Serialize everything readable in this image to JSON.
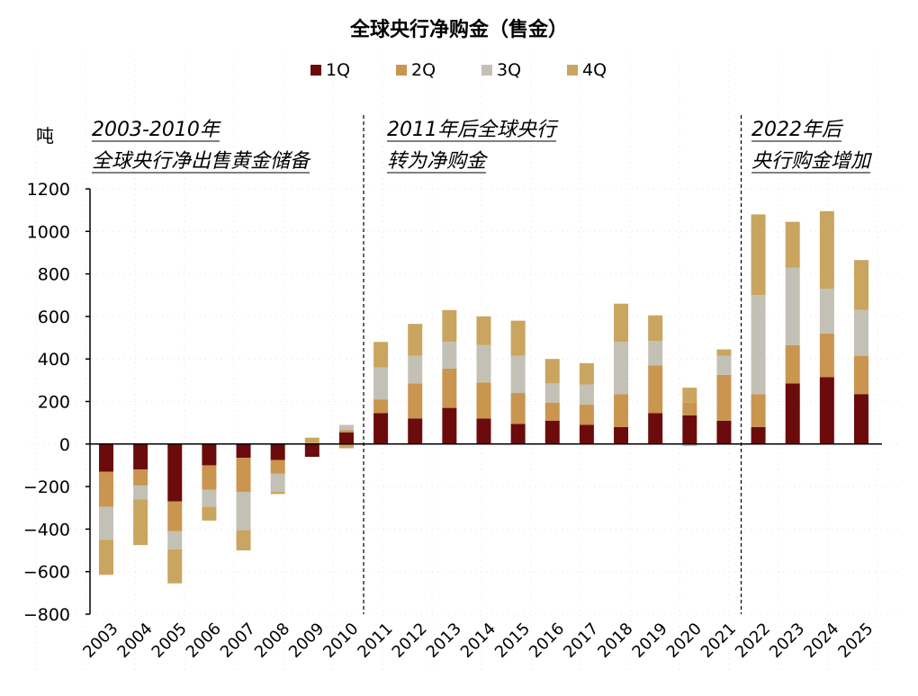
{
  "chart_data": {
    "type": "bar",
    "stacked": true,
    "title": "全球央行净购金（售金）",
    "ylabel": "吨",
    "ylim": [
      -800,
      1200
    ],
    "yticks": [
      -800,
      -600,
      -400,
      -200,
      0,
      200,
      400,
      600,
      800,
      1000,
      1200
    ],
    "legend_position": "top-center",
    "colors": {
      "1Q": "#6b0b0b",
      "2Q": "#c9954f",
      "3Q": "#c3c1b6",
      "4Q": "#c9a55f"
    },
    "categories": [
      "2003",
      "2004",
      "2005",
      "2006",
      "2007",
      "2008",
      "2009",
      "2010",
      "2011",
      "2012",
      "2013",
      "2014",
      "2015",
      "2016",
      "2017",
      "2018",
      "2019",
      "2020",
      "2021",
      "2022",
      "2023",
      "2024",
      "2025"
    ],
    "series": [
      {
        "name": "1Q",
        "values": [
          -130,
          -120,
          -270,
          -100,
          -65,
          -75,
          -60,
          55,
          145,
          120,
          170,
          120,
          95,
          110,
          90,
          80,
          145,
          135,
          110,
          80,
          285,
          315,
          235
        ]
      },
      {
        "name": "2Q",
        "values": [
          -165,
          -75,
          -140,
          -115,
          -160,
          -65,
          0,
          10,
          65,
          165,
          185,
          170,
          145,
          85,
          95,
          155,
          225,
          60,
          215,
          155,
          180,
          205,
          180
        ]
      },
      {
        "name": "3Q",
        "values": [
          -155,
          -65,
          -85,
          -80,
          -180,
          -85,
          0,
          25,
          150,
          130,
          125,
          175,
          175,
          90,
          95,
          245,
          115,
          -10,
          90,
          465,
          365,
          210,
          215
        ]
      },
      {
        "name": "4Q",
        "values": [
          -165,
          -215,
          -160,
          -65,
          -95,
          -10,
          30,
          -20,
          120,
          150,
          150,
          135,
          165,
          115,
          100,
          180,
          120,
          70,
          30,
          380,
          215,
          365,
          235
        ]
      }
    ],
    "annotations": [
      {
        "lines": [
          "2003-2010年",
          "全球央行净出售黄金储备"
        ]
      },
      {
        "lines": [
          "2011年后全球央行",
          "转为净购金"
        ]
      },
      {
        "lines": [
          "2022年后",
          "央行购金增加"
        ]
      }
    ],
    "dividers": [
      "2010|2011",
      "2021|2022"
    ]
  }
}
